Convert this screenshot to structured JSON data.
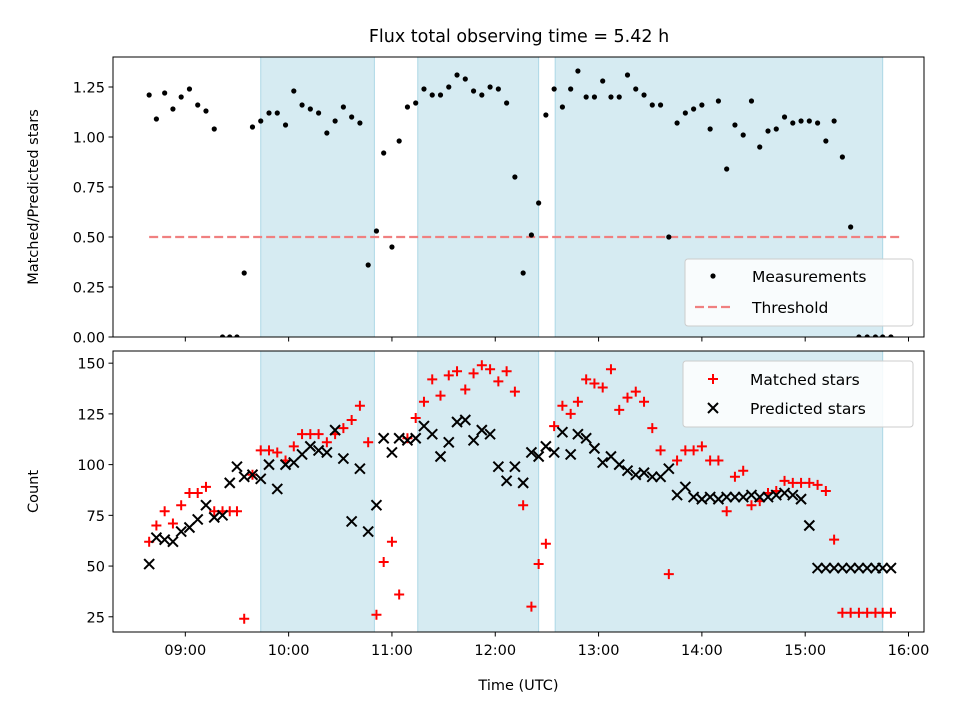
{
  "title": "Flux total observing time = 5.42 h",
  "colors": {
    "shade": "#add8e6",
    "measurement": "#000000",
    "threshold": "#f08080",
    "matched": "#ff0000",
    "predicted": "#000000"
  },
  "chart_data": [
    {
      "type": "scatter",
      "name": "ratio-panel",
      "ylabel": "Matched/Predicted stars",
      "xlabel": "",
      "xlim": [
        8.3,
        16.15
      ],
      "ylim": [
        0,
        1.4
      ],
      "yticks": [
        0.0,
        0.25,
        0.5,
        0.75,
        1.0,
        1.25
      ],
      "ytick_labels": [
        "0.00",
        "0.25",
        "0.50",
        "0.75",
        "1.00",
        "1.25"
      ],
      "legend": {
        "position": "lower-right",
        "entries": [
          "Measurements",
          "Threshold"
        ]
      },
      "shaded_intervals": [
        [
          9.73,
          10.83
        ],
        [
          11.25,
          12.42
        ],
        [
          12.58,
          15.75
        ]
      ],
      "threshold": {
        "name": "Threshold",
        "value": 0.5,
        "x_range": [
          8.65,
          15.93
        ]
      },
      "series": [
        {
          "name": "Measurements",
          "marker": "dot",
          "x": [
            8.65,
            8.72,
            8.8,
            8.88,
            8.96,
            9.04,
            9.12,
            9.2,
            9.28,
            9.36,
            9.43,
            9.5,
            9.57,
            9.65,
            9.73,
            9.81,
            9.89,
            9.97,
            10.05,
            10.13,
            10.21,
            10.29,
            10.37,
            10.45,
            10.53,
            10.61,
            10.69,
            10.77,
            10.85,
            10.92,
            11.0,
            11.07,
            11.15,
            11.23,
            11.31,
            11.39,
            11.47,
            11.55,
            11.63,
            11.71,
            11.79,
            11.87,
            11.95,
            12.03,
            12.11,
            12.19,
            12.27,
            12.35,
            12.42,
            12.49,
            12.57,
            12.65,
            12.73,
            12.8,
            12.88,
            12.96,
            13.04,
            13.12,
            13.2,
            13.28,
            13.36,
            13.44,
            13.52,
            13.6,
            13.68,
            13.76,
            13.84,
            13.92,
            14.0,
            14.08,
            14.16,
            14.24,
            14.32,
            14.4,
            14.48,
            14.56,
            14.64,
            14.72,
            14.8,
            14.88,
            14.96,
            15.04,
            15.12,
            15.2,
            15.28,
            15.36,
            15.44,
            15.52,
            15.6,
            15.68,
            15.75,
            15.83
          ],
          "y": [
            1.21,
            1.09,
            1.22,
            1.14,
            1.2,
            1.24,
            1.16,
            1.13,
            1.04,
            0.0,
            0.0,
            0.0,
            0.32,
            1.05,
            1.08,
            1.12,
            1.12,
            1.06,
            1.23,
            1.16,
            1.14,
            1.12,
            1.02,
            1.08,
            1.15,
            1.1,
            1.07,
            0.36,
            0.53,
            0.92,
            0.45,
            0.98,
            1.15,
            1.17,
            1.24,
            1.21,
            1.21,
            1.25,
            1.31,
            1.29,
            1.23,
            1.21,
            1.25,
            1.24,
            1.17,
            0.8,
            0.32,
            0.51,
            0.67,
            1.11,
            1.24,
            1.15,
            1.24,
            1.33,
            1.2,
            1.2,
            1.28,
            1.2,
            1.2,
            1.31,
            1.24,
            1.21,
            1.16,
            1.16,
            0.5,
            1.07,
            1.12,
            1.14,
            1.16,
            1.04,
            1.18,
            0.84,
            1.06,
            1.01,
            1.18,
            0.95,
            1.03,
            1.04,
            1.1,
            1.07,
            1.08,
            1.08,
            1.07,
            0.98,
            1.08,
            0.9,
            0.55,
            0.0,
            0.0,
            0.0,
            0.0,
            0.0
          ]
        }
      ]
    },
    {
      "type": "scatter",
      "name": "count-panel",
      "ylabel": "Count",
      "xlabel": "Time (UTC)",
      "xlim": [
        8.3,
        16.15
      ],
      "ylim": [
        17.5,
        156
      ],
      "yticks": [
        25,
        50,
        75,
        100,
        125,
        150
      ],
      "ytick_labels": [
        "25",
        "50",
        "75",
        "100",
        "125",
        "150"
      ],
      "xticks": [
        9,
        10,
        11,
        12,
        13,
        14,
        15,
        16
      ],
      "xtick_labels": [
        "09:00",
        "10:00",
        "11:00",
        "12:00",
        "13:00",
        "14:00",
        "15:00",
        "16:00"
      ],
      "legend": {
        "position": "top-right",
        "entries": [
          "Matched stars",
          "Predicted stars"
        ]
      },
      "shaded_intervals": [
        [
          9.73,
          10.83
        ],
        [
          11.25,
          12.42
        ],
        [
          12.58,
          15.75
        ]
      ],
      "series": [
        {
          "name": "Matched stars",
          "marker": "plus",
          "x": [
            8.65,
            8.72,
            8.8,
            8.88,
            8.96,
            9.04,
            9.12,
            9.2,
            9.28,
            9.36,
            9.43,
            9.5,
            9.57,
            9.65,
            9.73,
            9.81,
            9.89,
            9.97,
            10.05,
            10.13,
            10.21,
            10.29,
            10.37,
            10.45,
            10.53,
            10.61,
            10.69,
            10.77,
            10.85,
            10.92,
            11.0,
            11.07,
            11.15,
            11.23,
            11.31,
            11.39,
            11.47,
            11.55,
            11.63,
            11.71,
            11.79,
            11.87,
            11.95,
            12.03,
            12.11,
            12.19,
            12.27,
            12.35,
            12.42,
            12.49,
            12.57,
            12.65,
            12.73,
            12.8,
            12.88,
            12.96,
            13.04,
            13.12,
            13.2,
            13.28,
            13.36,
            13.44,
            13.52,
            13.6,
            13.68,
            13.76,
            13.84,
            13.92,
            14.0,
            14.08,
            14.16,
            14.24,
            14.32,
            14.4,
            14.48,
            14.56,
            14.64,
            14.72,
            14.8,
            14.88,
            14.96,
            15.04,
            15.12,
            15.2,
            15.28,
            15.36,
            15.44,
            15.52,
            15.6,
            15.68,
            15.75,
            15.83
          ],
          "y": [
            62,
            70,
            77,
            71,
            80,
            86,
            86,
            89,
            77,
            77,
            77,
            77,
            24,
            95,
            107,
            107,
            106,
            102,
            109,
            115,
            115,
            115,
            111,
            115,
            118,
            122,
            129,
            111,
            26,
            52,
            62,
            36,
            113,
            123,
            131,
            142,
            134,
            144,
            146,
            137,
            145,
            149,
            147,
            141,
            146,
            136,
            80,
            30,
            51,
            61,
            119,
            129,
            125,
            131,
            142,
            140,
            138,
            147,
            127,
            133,
            136,
            131,
            118,
            107,
            46,
            102,
            107,
            107,
            109,
            102,
            102,
            77,
            94,
            97,
            80,
            82,
            86,
            87,
            92,
            91,
            91,
            91,
            90,
            87,
            63,
            27,
            27,
            27,
            27,
            27,
            27,
            27
          ]
        },
        {
          "name": "Predicted stars",
          "marker": "x",
          "x": [
            8.65,
            8.72,
            8.8,
            8.88,
            8.96,
            9.04,
            9.12,
            9.2,
            9.28,
            9.36,
            9.43,
            9.5,
            9.57,
            9.65,
            9.73,
            9.81,
            9.89,
            9.97,
            10.05,
            10.13,
            10.21,
            10.29,
            10.37,
            10.45,
            10.53,
            10.61,
            10.69,
            10.77,
            10.85,
            10.92,
            11.0,
            11.07,
            11.15,
            11.23,
            11.31,
            11.39,
            11.47,
            11.55,
            11.63,
            11.71,
            11.79,
            11.87,
            11.95,
            12.03,
            12.11,
            12.19,
            12.27,
            12.35,
            12.42,
            12.49,
            12.57,
            12.65,
            12.73,
            12.8,
            12.88,
            12.96,
            13.04,
            13.12,
            13.2,
            13.28,
            13.36,
            13.44,
            13.52,
            13.6,
            13.68,
            13.76,
            13.84,
            13.92,
            14.0,
            14.08,
            14.16,
            14.24,
            14.32,
            14.4,
            14.48,
            14.56,
            14.64,
            14.72,
            14.8,
            14.88,
            14.96,
            15.04,
            15.12,
            15.2,
            15.28,
            15.36,
            15.44,
            15.52,
            15.6,
            15.68,
            15.75,
            15.83
          ],
          "y": [
            51,
            64,
            63,
            62,
            67,
            69,
            73,
            80,
            74,
            75,
            91,
            99,
            94,
            95,
            93,
            100,
            88,
            100,
            101,
            105,
            109,
            107,
            106,
            117,
            103,
            72,
            98,
            67,
            80,
            113,
            106,
            113,
            112,
            113,
            119,
            115,
            104,
            111,
            121,
            122,
            112,
            117,
            115,
            99,
            92,
            99,
            91,
            106,
            104,
            109,
            106,
            116,
            105,
            115,
            113,
            108,
            101,
            104,
            100,
            97,
            95,
            96,
            94,
            94,
            98,
            85,
            89,
            84,
            83,
            84,
            83,
            84,
            84,
            84,
            85,
            84,
            84,
            85,
            86,
            85,
            83,
            70,
            49,
            49,
            49,
            49,
            49,
            49,
            49,
            49,
            49,
            49
          ]
        }
      ]
    }
  ]
}
